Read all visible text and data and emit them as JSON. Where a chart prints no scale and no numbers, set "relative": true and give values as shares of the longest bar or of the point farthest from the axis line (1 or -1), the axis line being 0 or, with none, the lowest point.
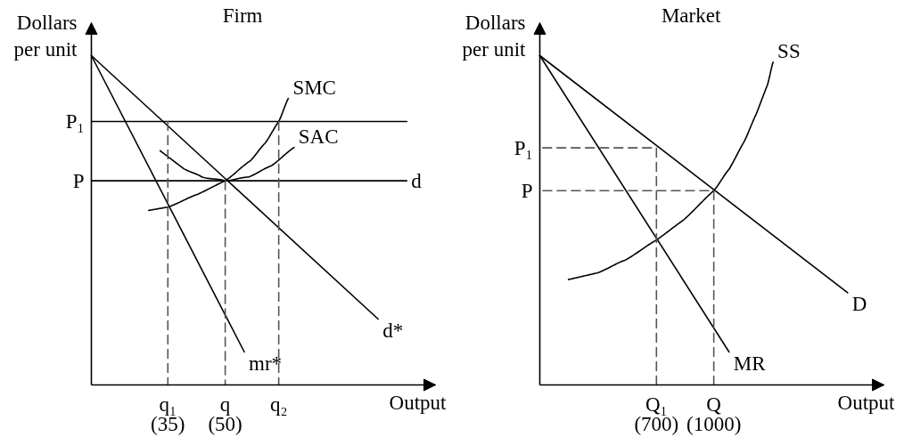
{
  "chart_data": [
    {
      "type": "line",
      "title": "Firm",
      "xlabel": "Output",
      "ylabel": "Dollars per unit",
      "relative": true,
      "xlim": [
        15,
        105
      ],
      "xticks": [
        {
          "value": 35,
          "label": "q₁ (35)"
        },
        {
          "value": 50,
          "label": "q (50)"
        },
        {
          "value": 64,
          "label": "q₂"
        }
      ],
      "series": [
        {
          "name": "d*",
          "color": "#000000",
          "x": [
            15,
            90
          ],
          "values": [
            1,
            0.2
          ]
        },
        {
          "name": "mr*",
          "color": "#000000",
          "x": [
            15,
            55
          ],
          "values": [
            1,
            0.1
          ]
        },
        {
          "name": "SMC",
          "color": "#000000",
          "x": [
            30,
            35,
            43,
            50,
            56.5,
            60.5,
            64,
            66.5
          ],
          "values": [
            0.53,
            0.54,
            0.58,
            0.62,
            0.68,
            0.735,
            0.8,
            0.87
          ]
        },
        {
          "name": "SAC",
          "color": "#000000",
          "x": [
            33,
            39,
            44,
            50,
            56,
            62,
            68
          ],
          "values": [
            0.711,
            0.658,
            0.631,
            0.62,
            0.631,
            0.665,
            0.721
          ]
        },
        {
          "name": "d",
          "color": "#000000",
          "x": [
            15,
            97.5
          ],
          "values": [
            0.62,
            0.62
          ]
        },
        {
          "name": "P₁",
          "color": "#000000",
          "x": [
            97.5,
            15
          ],
          "values": [
            0.8,
            0.8
          ]
        },
        {
          "color": "#555555",
          "line_style": "dashed",
          "x": [
            35,
            35
          ],
          "values": [
            0.8,
            0
          ]
        },
        {
          "color": "#555555",
          "line_style": "dashed",
          "x": [
            50,
            50
          ],
          "values": [
            0.62,
            0
          ]
        },
        {
          "color": "#555555",
          "line_style": "dashed",
          "x": [
            64,
            64
          ],
          "values": [
            0.8,
            0
          ]
        }
      ],
      "annotations": [
        {
          "text": "P",
          "x": 15,
          "y": 0.62
        }
      ]
    },
    {
      "type": "line",
      "title": "Market",
      "xlabel": "Output",
      "ylabel": "Dollars per unit",
      "relative": true,
      "xlim": [
        90,
        1890
      ],
      "xticks": [
        {
          "value": 700,
          "label": "Q₁ (700)"
        },
        {
          "value": 1000,
          "label": "Q (1000)"
        }
      ],
      "series": [
        {
          "name": "D",
          "color": "#000000",
          "x": [
            90,
            1700
          ],
          "values": [
            1,
            0.28
          ]
        },
        {
          "name": "MR",
          "color": "#000000",
          "x": [
            90,
            1080
          ],
          "values": [
            1,
            0.1
          ]
        },
        {
          "name": "SS",
          "color": "#000000",
          "x": [
            240,
            390,
            540,
            700,
            840,
            1000,
            1080,
            1160,
            1220,
            1280,
            1310
          ],
          "values": [
            0.32,
            0.34,
            0.38,
            0.44,
            0.5,
            0.59,
            0.655,
            0.74,
            0.82,
            0.91,
            0.98
          ]
        },
        {
          "name": "P₁",
          "color": "#555555",
          "line_style": "dashed",
          "x": [
            700,
            700,
            90
          ],
          "values": [
            0,
            0.72,
            0.72
          ]
        },
        {
          "name": "P",
          "color": "#555555",
          "line_style": "dashed",
          "x": [
            1000,
            1000,
            90
          ],
          "values": [
            0,
            0.59,
            0.59
          ]
        }
      ]
    }
  ]
}
